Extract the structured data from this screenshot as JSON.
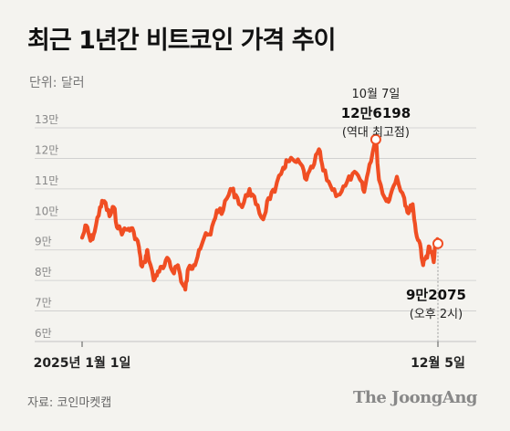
{
  "title": "최근 1년간 비트코인 가격 추이",
  "unit_label": "단위: 달러",
  "source": "자료: 코인마켓캡",
  "brand": "The JoongAng",
  "colors": {
    "line": "#f04e23",
    "grid": "#cccccc",
    "text": "#111111"
  },
  "chart_data": {
    "type": "line",
    "title": "최근 1년간 비트코인 가격 추이",
    "ylabel": "단위: 달러",
    "ylim": [
      60000,
      130000
    ],
    "y_ticks": [
      {
        "value": 130000,
        "label": "13만"
      },
      {
        "value": 120000,
        "label": "12만"
      },
      {
        "value": 110000,
        "label": "11만"
      },
      {
        "value": 100000,
        "label": "10만"
      },
      {
        "value": 90000,
        "label": "9만"
      },
      {
        "value": 80000,
        "label": "8만"
      },
      {
        "value": 70000,
        "label": "7만"
      },
      {
        "value": 60000,
        "label": "6만"
      }
    ],
    "x_ticks": [
      {
        "date": "2025-01-01",
        "label": "2025년 1월 1일"
      },
      {
        "date": "2025-12-05",
        "label": "12월 5일"
      }
    ],
    "grid": true,
    "series": [
      {
        "points": [
          [
            "2025-01-01",
            94000
          ],
          [
            "2025-01-05",
            98000
          ],
          [
            "2025-01-09",
            93000
          ],
          [
            "2025-01-13",
            96000
          ],
          [
            "2025-01-18",
            104000
          ],
          [
            "2025-01-22",
            106000
          ],
          [
            "2025-01-27",
            101000
          ],
          [
            "2025-01-31",
            104000
          ],
          [
            "2025-02-04",
            97000
          ],
          [
            "2025-02-09",
            96000
          ],
          [
            "2025-02-14",
            97000
          ],
          [
            "2025-02-19",
            96000
          ],
          [
            "2025-02-24",
            91000
          ],
          [
            "2025-02-26",
            85000
          ],
          [
            "2025-03-02",
            86000
          ],
          [
            "2025-03-04",
            90000
          ],
          [
            "2025-03-10",
            80000
          ],
          [
            "2025-03-14",
            83000
          ],
          [
            "2025-03-19",
            84000
          ],
          [
            "2025-03-24",
            87000
          ],
          [
            "2025-03-28",
            83000
          ],
          [
            "2025-04-02",
            85000
          ],
          [
            "2025-04-06",
            79000
          ],
          [
            "2025-04-09",
            77000
          ],
          [
            "2025-04-12",
            84000
          ],
          [
            "2025-04-17",
            85000
          ],
          [
            "2025-04-22",
            90000
          ],
          [
            "2025-04-27",
            94000
          ],
          [
            "2025-05-03",
            95000
          ],
          [
            "2025-05-09",
            103000
          ],
          [
            "2025-05-15",
            103000
          ],
          [
            "2025-05-22",
            110000
          ],
          [
            "2025-05-27",
            108000
          ],
          [
            "2025-06-02",
            104000
          ],
          [
            "2025-06-09",
            110000
          ],
          [
            "2025-06-15",
            105000
          ],
          [
            "2025-06-22",
            100000
          ],
          [
            "2025-06-27",
            107000
          ],
          [
            "2025-07-03",
            109000
          ],
          [
            "2025-07-11",
            117000
          ],
          [
            "2025-07-15",
            119000
          ],
          [
            "2025-07-22",
            119000
          ],
          [
            "2025-07-28",
            118000
          ],
          [
            "2025-08-02",
            113000
          ],
          [
            "2025-08-08",
            117000
          ],
          [
            "2025-08-14",
            123000
          ],
          [
            "2025-08-18",
            116000
          ],
          [
            "2025-08-25",
            111000
          ],
          [
            "2025-09-01",
            108000
          ],
          [
            "2025-09-08",
            111000
          ],
          [
            "2025-09-15",
            115000
          ],
          [
            "2025-09-22",
            113000
          ],
          [
            "2025-09-26",
            109000
          ],
          [
            "2025-10-01",
            118000
          ],
          [
            "2025-10-07",
            126198
          ],
          [
            "2025-10-10",
            113000
          ],
          [
            "2025-10-17",
            106000
          ],
          [
            "2025-10-21",
            108000
          ],
          [
            "2025-10-27",
            114000
          ],
          [
            "2025-11-03",
            107000
          ],
          [
            "2025-11-07",
            102000
          ],
          [
            "2025-11-11",
            105000
          ],
          [
            "2025-11-14",
            96000
          ],
          [
            "2025-11-18",
            92000
          ],
          [
            "2025-11-21",
            85000
          ],
          [
            "2025-11-24",
            88000
          ],
          [
            "2025-11-27",
            91000
          ],
          [
            "2025-12-01",
            86000
          ],
          [
            "2025-12-03",
            93000
          ],
          [
            "2025-12-05",
            92075
          ]
        ]
      }
    ],
    "annotations": [
      {
        "date": "2025-10-07",
        "value": 126198,
        "lines": [
          "10월 7일",
          "12만6198",
          "(역대 최고점)"
        ]
      },
      {
        "date": "2025-12-05",
        "value": 92075,
        "lines": [
          "9만2075",
          "(오후 2시)"
        ]
      }
    ]
  }
}
